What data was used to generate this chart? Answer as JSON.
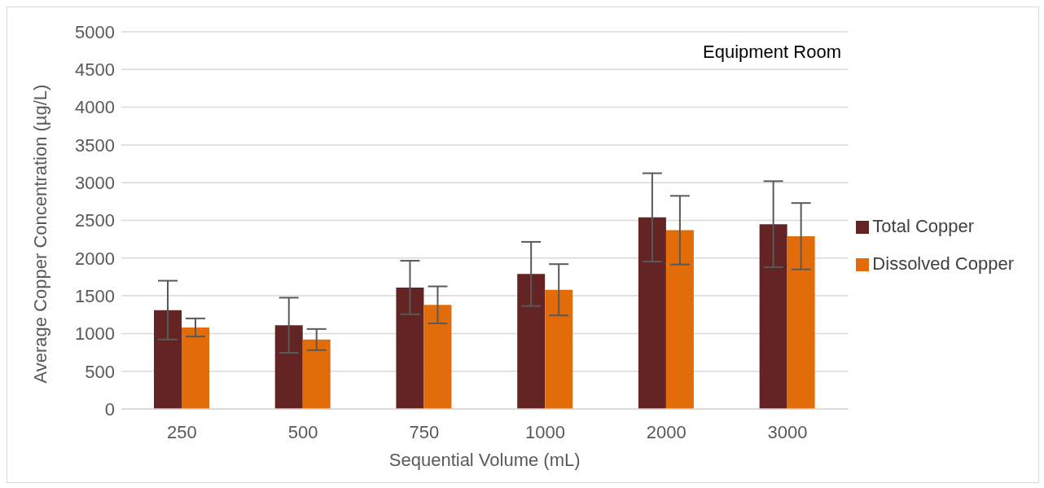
{
  "chart_data": {
    "type": "bar",
    "title": "Equipment Room",
    "xlabel": "Sequential Volume (mL)",
    "ylabel": "Average Copper Concentration (µg/L)",
    "categories": [
      "250",
      "500",
      "750",
      "1000",
      "2000",
      "3000"
    ],
    "series": [
      {
        "name": "Total Copper",
        "color": "#632423",
        "values": [
          1310,
          1110,
          1610,
          1790,
          2540,
          2450
        ],
        "errors": [
          390,
          365,
          355,
          425,
          585,
          570
        ]
      },
      {
        "name": "Dissolved Copper",
        "color": "#e36c0a",
        "values": [
          1080,
          920,
          1380,
          1580,
          2370,
          2290
        ],
        "errors": [
          120,
          140,
          245,
          340,
          455,
          440
        ]
      }
    ],
    "ylim": [
      0,
      5000
    ],
    "yticks": [
      0,
      500,
      1000,
      1500,
      2000,
      2500,
      3000,
      3500,
      4000,
      4500,
      5000
    ],
    "grid": "y",
    "legend": "right"
  }
}
